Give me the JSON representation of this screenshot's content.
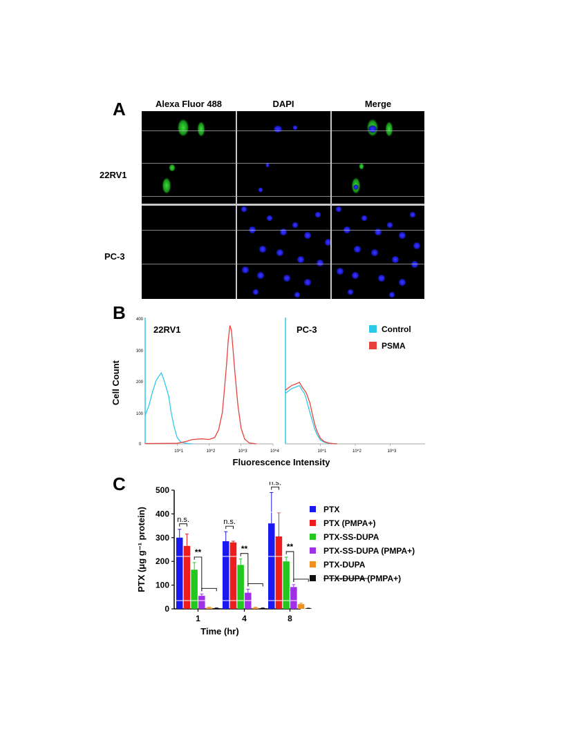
{
  "panel_a": {
    "label": "A",
    "columns": [
      "Alexa Fluor 488",
      "DAPI",
      "Merge"
    ],
    "rows": [
      "22RV1",
      "PC-3"
    ]
  },
  "panel_b": {
    "label": "B",
    "ylabel": "Cell Count",
    "xlabel": "Fluorescence Intensity",
    "legend": [
      {
        "name": "Control",
        "color": "#2ec8e8"
      },
      {
        "name": "PSMA",
        "color": "#e8403a"
      }
    ]
  },
  "panel_c": {
    "label": "C",
    "legend": [
      {
        "name": "PTX",
        "color": "#1a1af0"
      },
      {
        "name": "PTX (PMPA+)",
        "color": "#ee1c1c"
      },
      {
        "name": "PTX-SS-DUPA",
        "color": "#22c81e"
      },
      {
        "name": "PTX-SS-DUPA (PMPA+)",
        "color": "#a030e8"
      },
      {
        "name": "PTX-DUPA",
        "color": "#f09020"
      },
      {
        "name": "PTX-DUPA (PMPA+)",
        "color": "#111111"
      }
    ]
  },
  "chart_data": [
    {
      "type": "line",
      "title": "22RV1",
      "xlabel": "Fluorescence Intensity",
      "ylabel": "Cell Count",
      "x_scale": "log",
      "xlim": [
        1,
        10000
      ],
      "ylim": [
        0,
        400
      ],
      "yticks": [
        0,
        100,
        200,
        300,
        400
      ],
      "xticks": [
        "10^1",
        "10^2",
        "10^3",
        "10^4"
      ],
      "series": [
        {
          "name": "Control",
          "color": "#2ec8e8",
          "x": [
            1,
            1.3,
            1.7,
            2.2,
            2.7,
            3.2,
            3.8,
            4.5,
            5.5,
            6.5,
            8,
            10,
            13,
            17,
            22,
            30
          ],
          "y": [
            90,
            120,
            165,
            200,
            215,
            225,
            205,
            180,
            150,
            100,
            55,
            20,
            6,
            3,
            1,
            0
          ]
        },
        {
          "name": "PSMA",
          "color": "#e8403a",
          "x": [
            1,
            10,
            20,
            30,
            60,
            100,
            150,
            200,
            260,
            300,
            350,
            400,
            450,
            500,
            560,
            650,
            800,
            1000,
            1300,
            1800,
            3000
          ],
          "y": [
            1,
            2,
            8,
            14,
            16,
            14,
            20,
            45,
            100,
            170,
            250,
            330,
            375,
            360,
            300,
            220,
            120,
            50,
            15,
            3,
            0
          ]
        }
      ]
    },
    {
      "type": "line",
      "title": "PC-3",
      "xlabel": "Fluorescence Intensity",
      "ylabel": "Cell Count",
      "x_scale": "log",
      "xlim": [
        1,
        10000
      ],
      "xticks": [
        "10^1",
        "10^2",
        "10^3"
      ],
      "series": [
        {
          "name": "Control",
          "color": "#2ec8e8",
          "x": [
            1,
            1.5,
            2,
            2.5,
            3,
            3.5,
            4,
            5,
            6,
            7,
            8,
            10,
            13,
            17,
            22,
            30
          ],
          "y": [
            160,
            175,
            180,
            185,
            170,
            160,
            140,
            100,
            70,
            45,
            30,
            12,
            5,
            2,
            1,
            0
          ]
        },
        {
          "name": "PSMA",
          "color": "#e8403a",
          "x": [
            1,
            1.5,
            2,
            2.5,
            3,
            3.5,
            4,
            5,
            6,
            7,
            8,
            10,
            13,
            17,
            22,
            30
          ],
          "y": [
            170,
            185,
            190,
            195,
            180,
            170,
            160,
            130,
            90,
            60,
            40,
            18,
            7,
            3,
            1,
            0
          ]
        }
      ]
    },
    {
      "type": "bar",
      "xlabel": "Time (hr)",
      "ylabel": "PTX (μg g⁻¹ protein)",
      "categories": [
        "1",
        "4",
        "8"
      ],
      "ylim": [
        0,
        500
      ],
      "yticks": [
        0,
        100,
        200,
        300,
        400,
        500
      ],
      "series": [
        {
          "name": "PTX",
          "color": "#1a1af0",
          "values": [
            300,
            285,
            360
          ],
          "errors": [
            35,
            40,
            130
          ]
        },
        {
          "name": "PTX (PMPA+)",
          "color": "#ee1c1c",
          "values": [
            265,
            280,
            305
          ],
          "errors": [
            50,
            5,
            100
          ]
        },
        {
          "name": "PTX-SS-DUPA",
          "color": "#22c81e",
          "values": [
            165,
            185,
            200
          ],
          "errors": [
            30,
            25,
            18
          ]
        },
        {
          "name": "PTX-SS-DUPA (PMPA+)",
          "color": "#a030e8",
          "values": [
            55,
            68,
            92
          ],
          "errors": [
            8,
            15,
            10
          ]
        },
        {
          "name": "PTX-DUPA",
          "color": "#f09020",
          "values": [
            5,
            5,
            20
          ],
          "errors": [
            2,
            2,
            4
          ]
        },
        {
          "name": "PTX-DUPA (PMPA+)",
          "color": "#111111",
          "values": [
            3,
            3,
            2
          ],
          "errors": [
            1,
            1,
            1
          ]
        }
      ],
      "annotations": [
        {
          "text": "n.s.",
          "category": "1"
        },
        {
          "text": "**",
          "category": "1"
        },
        {
          "text": "n.s.",
          "category": "4"
        },
        {
          "text": "**",
          "category": "4"
        },
        {
          "text": "n.s.",
          "category": "8"
        },
        {
          "text": "**",
          "category": "8"
        }
      ]
    }
  ]
}
